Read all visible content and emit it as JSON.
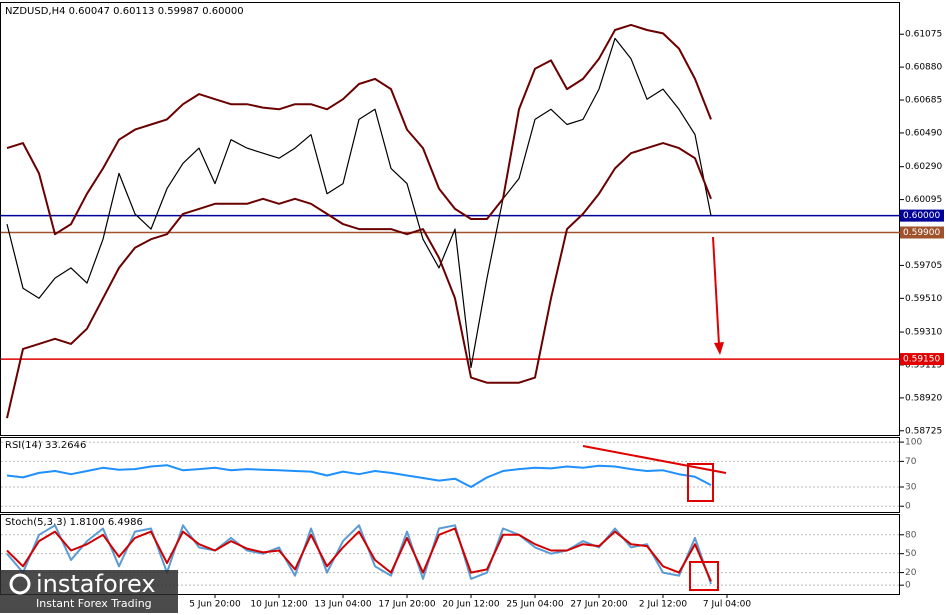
{
  "chart_data": [
    {
      "type": "line",
      "title": "NZDUSD,H4 0.60047 0.60113 0.59987 0.60000",
      "categories": [
        null,
        null,
        null,
        null,
        null,
        null,
        null,
        null,
        null,
        null,
        null,
        null,
        null,
        "5 Jun 20:00",
        null,
        null,
        null,
        "10 Jun 12:00",
        null,
        null,
        null,
        "13 Jun 04:00",
        null,
        null,
        null,
        "17 Jun 20:00",
        null,
        null,
        null,
        "20 Jun 12:00",
        null,
        null,
        null,
        "25 Jun 04:00",
        null,
        null,
        null,
        "27 Jun 20:00",
        null,
        null,
        null,
        "2 Jul 12:00",
        null,
        null,
        null,
        "7 Jul 04:00"
      ],
      "series": [
        {
          "color": "#000000",
          "values": [
            0.5995,
            0.5957,
            0.5951,
            0.5963,
            0.5969,
            0.596,
            0.5986,
            0.6025,
            0.6001,
            0.5992,
            0.6016,
            0.6031,
            0.604,
            0.6019,
            0.6045,
            0.604,
            0.6037,
            0.6034,
            0.604,
            0.6048,
            0.6013,
            0.6019,
            0.6057,
            0.6063,
            0.6028,
            0.6019,
            0.5986,
            0.5969,
            0.5992,
            0.591,
            0.5963,
            0.601,
            0.6022,
            0.6057,
            0.6063,
            0.6054,
            0.6057,
            0.6075,
            0.6105,
            0.6093,
            0.6069,
            0.6075,
            0.6063,
            0.6048,
            0.6,
            null
          ]
        },
        {
          "color": "#6b0000",
          "values": [
            0.604,
            0.6043,
            0.6025,
            0.5989,
            0.5995,
            0.6013,
            0.6028,
            0.6045,
            0.6051,
            0.6054,
            0.6057,
            0.6066,
            0.6072,
            0.6069,
            0.6066,
            0.6066,
            0.6064,
            0.6063,
            0.6066,
            0.6066,
            0.6063,
            0.6069,
            0.6078,
            0.6081,
            0.6075,
            0.6051,
            0.604,
            0.6016,
            0.6004,
            0.5998,
            0.5998,
            0.601,
            0.6063,
            0.6087,
            0.6092,
            0.6075,
            0.6081,
            0.6093,
            0.611,
            0.6113,
            0.611,
            0.6108,
            0.6099,
            0.6081,
            0.6057,
            null
          ]
        },
        {
          "color": "#6b0000",
          "values": [
            0.588,
            0.5921,
            0.5924,
            0.5927,
            0.5924,
            0.5933,
            0.5951,
            0.5969,
            0.5981,
            0.5986,
            0.5989,
            0.6001,
            0.6004,
            0.6007,
            0.6007,
            0.6007,
            0.601,
            0.6007,
            0.601,
            0.6007,
            0.6001,
            0.5995,
            0.5992,
            0.5992,
            0.5992,
            0.5989,
            0.5992,
            0.5975,
            0.5951,
            0.5904,
            0.5901,
            0.5901,
            0.5901,
            0.5904,
            0.5951,
            0.5992,
            0.6001,
            0.6013,
            0.6028,
            0.6037,
            0.604,
            0.6043,
            0.604,
            0.6034,
            0.601,
            null
          ]
        }
      ],
      "ylim": [
        0.587,
        0.6126
      ],
      "yticks": [
        {
          "value": 0.61075,
          "label": "0.61075"
        },
        {
          "value": 0.6088,
          "label": "0.60880"
        },
        {
          "value": 0.60685,
          "label": "0.60685"
        },
        {
          "value": 0.6049,
          "label": "0.60490"
        },
        {
          "value": 0.6029,
          "label": "0.60290"
        },
        {
          "value": 0.60095,
          "label": "0.60095"
        },
        {
          "value": 0.59705,
          "label": "0.59705"
        },
        {
          "value": 0.5951,
          "label": "0.59510"
        },
        {
          "value": 0.5931,
          "label": "0.59310"
        },
        {
          "value": 0.59115,
          "label": "0.59115"
        },
        {
          "value": 0.5892,
          "label": "0.58920"
        },
        {
          "value": 0.58725,
          "label": "0.58725"
        }
      ],
      "levels": [
        {
          "value": 0.6,
          "label": "0.60000",
          "color": "#000099"
        },
        {
          "value": 0.599,
          "label": "0.59900",
          "color": "#a0522d"
        },
        {
          "value": 0.5915,
          "label": "0.59150",
          "color": "#e00000"
        }
      ],
      "grid": false
    },
    {
      "type": "line",
      "title": "RSI(14) 33.2646",
      "series": [
        {
          "color": "#1e90ff",
          "values": [
            48,
            45,
            52,
            55,
            50,
            55,
            60,
            57,
            58,
            62,
            64,
            56,
            58,
            60,
            56,
            58,
            57,
            56,
            55,
            54,
            48,
            54,
            50,
            55,
            52,
            48,
            44,
            40,
            43,
            30,
            45,
            55,
            58,
            60,
            59,
            62,
            60,
            63,
            62,
            58,
            55,
            56,
            50,
            46,
            33,
            null
          ]
        }
      ],
      "ylim": [
        -9,
        108
      ],
      "yticks": [
        100,
        70,
        30,
        0
      ],
      "grid": true
    },
    {
      "type": "line",
      "title": "Stoch(5,3,3) 1.8100 6.4986",
      "series": [
        {
          "color": "#5b9bd5",
          "values": [
            50,
            20,
            80,
            95,
            40,
            70,
            90,
            30,
            85,
            90,
            20,
            95,
            60,
            55,
            75,
            55,
            50,
            60,
            15,
            90,
            20,
            70,
            95,
            30,
            15,
            85,
            10,
            90,
            95,
            10,
            20,
            90,
            80,
            60,
            50,
            55,
            70,
            60,
            90,
            60,
            65,
            20,
            15,
            75,
            2,
            null
          ]
        },
        {
          "color": "#d00000",
          "values": [
            55,
            30,
            70,
            85,
            55,
            65,
            80,
            45,
            75,
            85,
            35,
            85,
            65,
            55,
            70,
            58,
            52,
            55,
            25,
            80,
            30,
            60,
            85,
            40,
            20,
            75,
            20,
            80,
            90,
            20,
            25,
            80,
            80,
            65,
            55,
            55,
            65,
            62,
            85,
            65,
            62,
            30,
            20,
            65,
            6,
            null
          ]
        }
      ],
      "ylim": [
        -14,
        113
      ],
      "yticks": [
        80,
        50,
        20,
        0
      ],
      "grid": true
    }
  ],
  "watermark": {
    "name": "instaforex",
    "tagline": "Instant Forex Trading"
  }
}
